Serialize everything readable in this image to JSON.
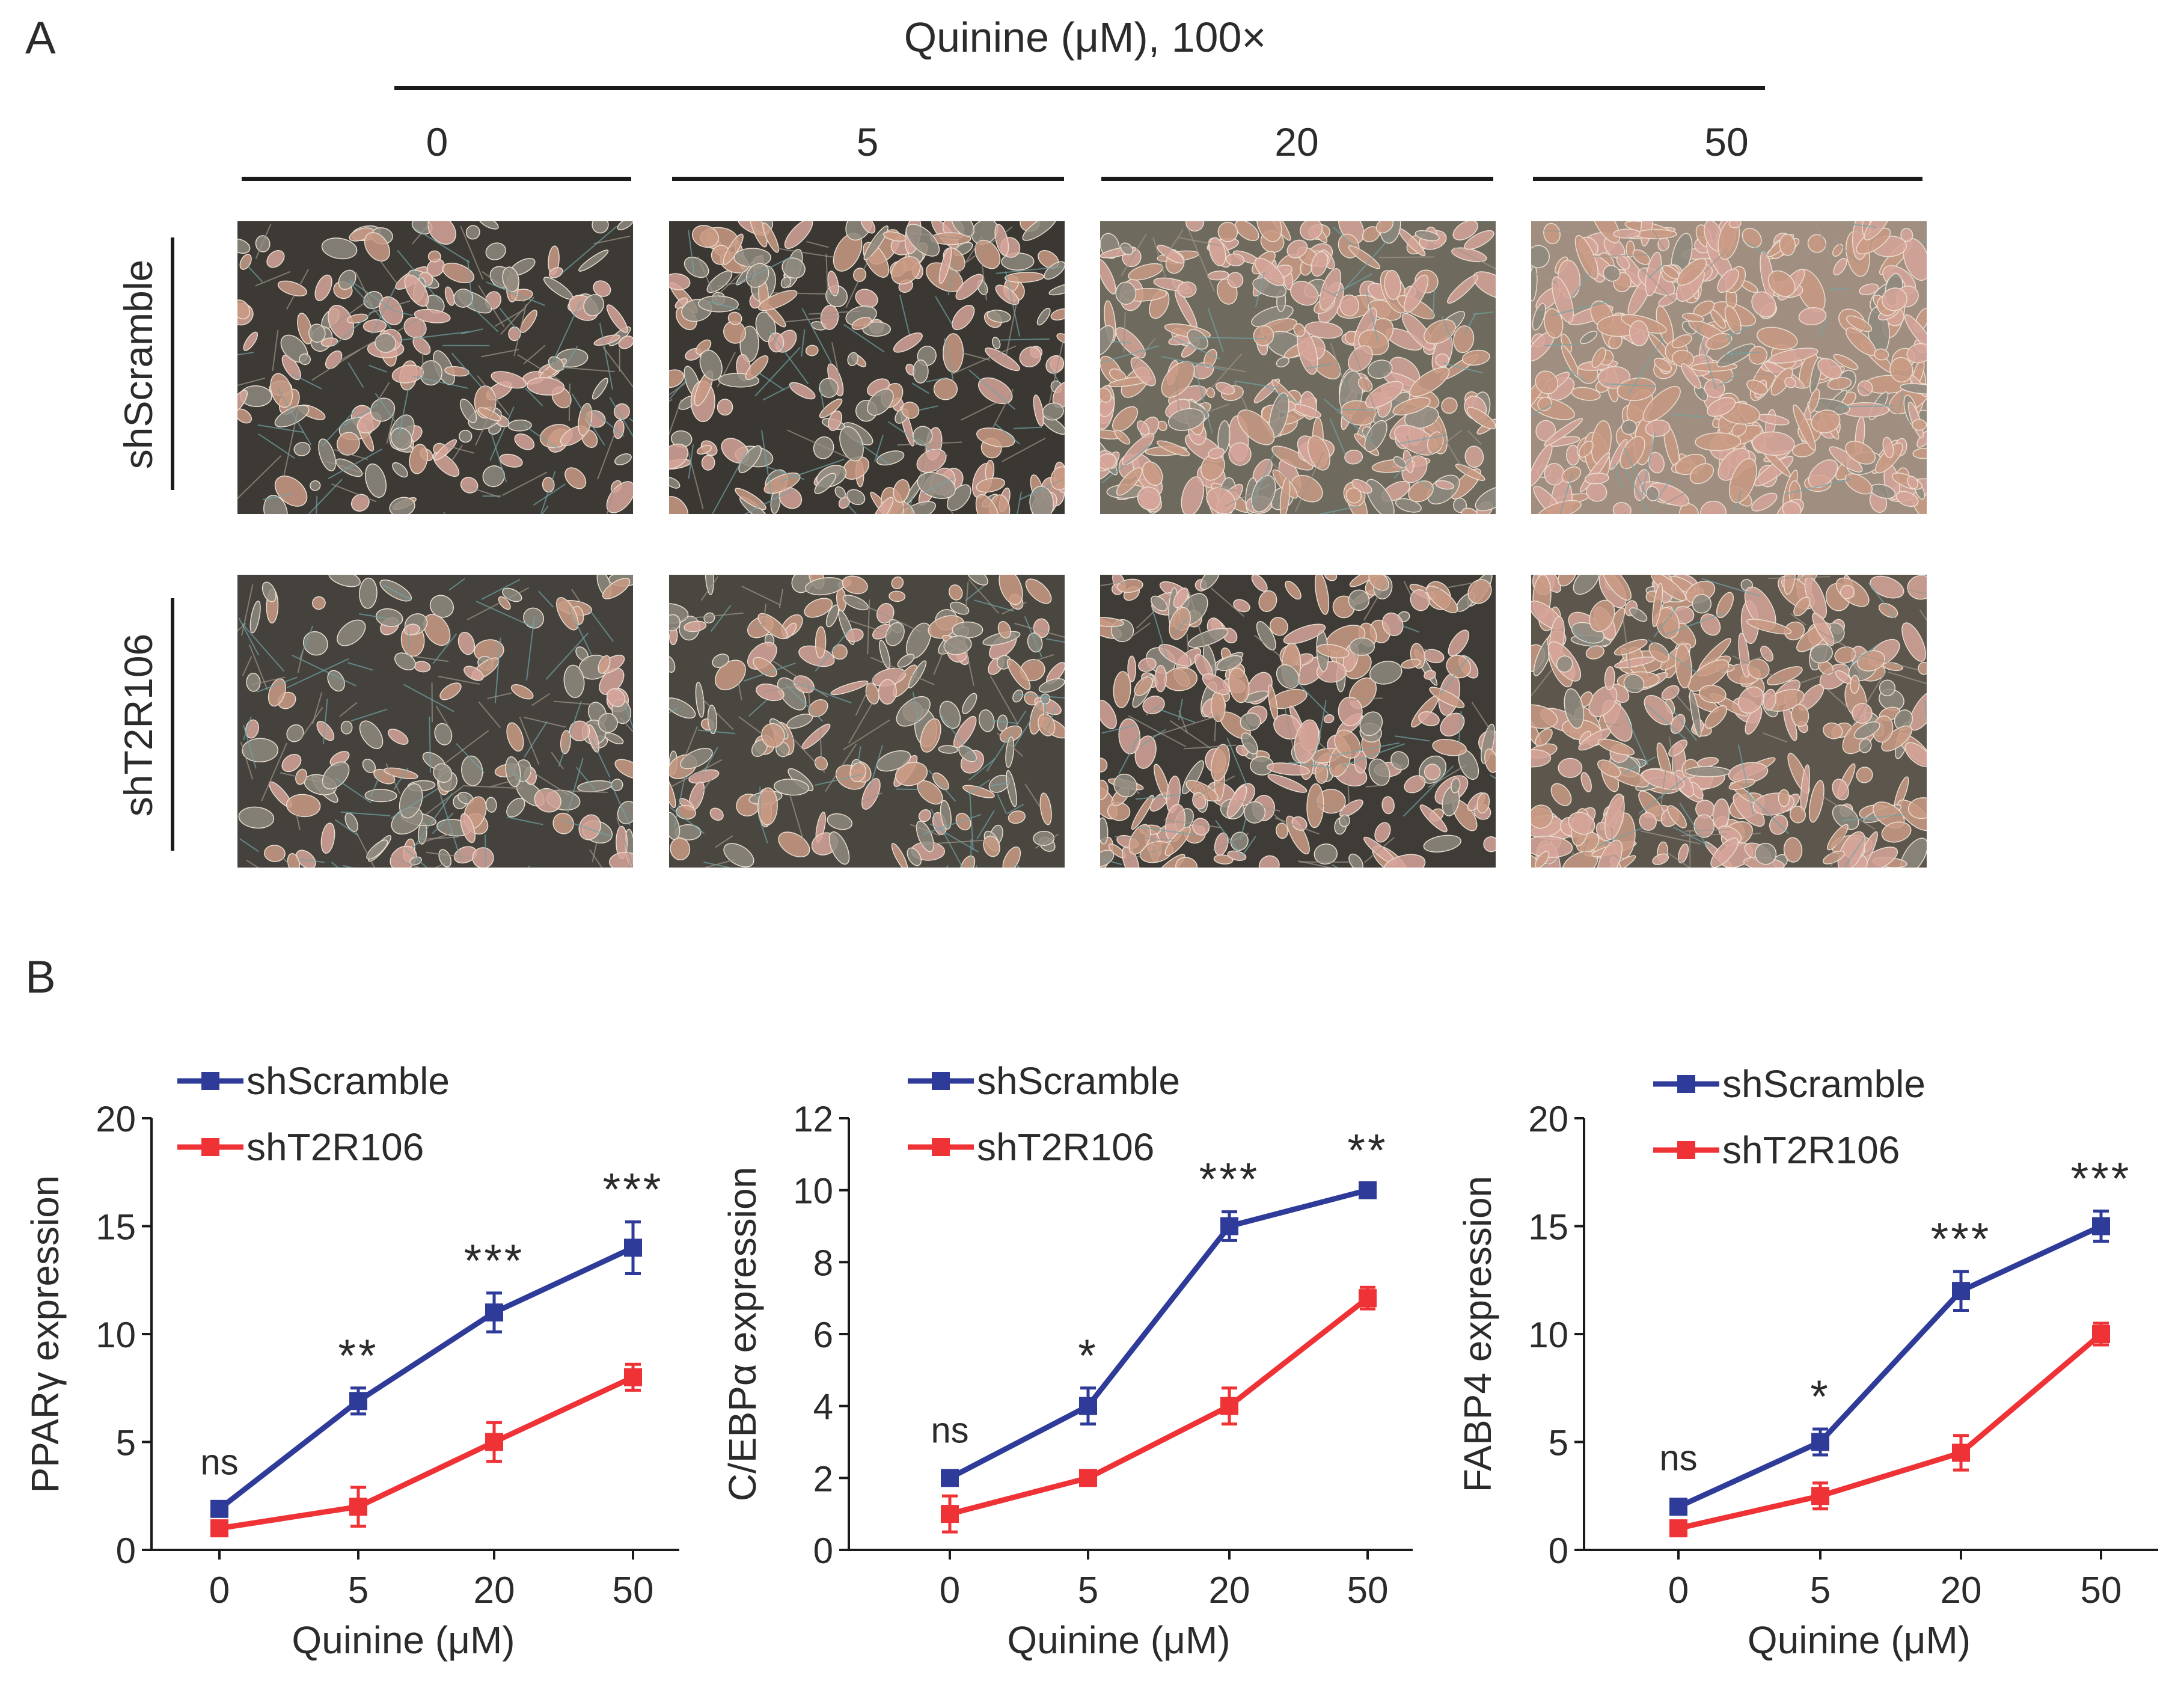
{
  "panel_a": {
    "letter": "A",
    "header": "Quinine (μM), 100×",
    "columns": [
      "0",
      "5",
      "20",
      "50"
    ],
    "rows": [
      "shScramble",
      "shT2R106"
    ]
  },
  "panel_b": {
    "letter": "B"
  },
  "colors": {
    "shScramble": "#2f3b99",
    "shT2R106": "#ee3236",
    "micro_bg_low": "#3e3a35",
    "micro_cell": "#d9a898"
  },
  "chart_data": [
    {
      "type": "line",
      "categories": [
        "0",
        "5",
        "20",
        "50"
      ],
      "xlabel": "Quinine (μM)",
      "ylabel": "PPARγ expression",
      "ylim": [
        0,
        20
      ],
      "yticks": [
        "0",
        "5",
        "10",
        "15",
        "20"
      ],
      "series": [
        {
          "name": "shScramble",
          "values": [
            1.9,
            6.9,
            11.0,
            14.0
          ],
          "err": [
            0.2,
            0.6,
            0.9,
            1.2
          ]
        },
        {
          "name": "shT2R106",
          "values": [
            1.0,
            2.0,
            5.0,
            8.0
          ],
          "err": [
            0.3,
            0.9,
            0.9,
            0.6
          ]
        }
      ],
      "annotations": [
        "ns",
        "**",
        "***",
        "***"
      ],
      "legend": "top-left"
    },
    {
      "type": "line",
      "categories": [
        "0",
        "5",
        "20",
        "50"
      ],
      "xlabel": "Quinine (μM)",
      "ylabel": "C/EBPα expression",
      "ylim": [
        0,
        12
      ],
      "yticks": [
        "0",
        "2",
        "4",
        "6",
        "8",
        "10",
        "12"
      ],
      "series": [
        {
          "name": "shScramble",
          "values": [
            2.0,
            4.0,
            9.0,
            10.0
          ],
          "err": [
            0.15,
            0.5,
            0.4,
            0.2
          ]
        },
        {
          "name": "shT2R106",
          "values": [
            1.0,
            2.0,
            4.0,
            7.0
          ],
          "err": [
            0.5,
            0.2,
            0.5,
            0.3
          ]
        }
      ],
      "annotations": [
        "ns",
        "*",
        "***",
        "**"
      ],
      "legend": "top-left"
    },
    {
      "type": "line",
      "categories": [
        "0",
        "5",
        "20",
        "50"
      ],
      "xlabel": "Quinine (μM)",
      "ylabel": "FABP4 expression",
      "ylim": [
        0,
        20
      ],
      "yticks": [
        "0",
        "5",
        "10",
        "15",
        "20"
      ],
      "series": [
        {
          "name": "shScramble",
          "values": [
            2.0,
            5.0,
            12.0,
            15.0
          ],
          "err": [
            0.3,
            0.6,
            0.9,
            0.7
          ]
        },
        {
          "name": "shT2R106",
          "values": [
            1.0,
            2.5,
            4.5,
            10.0
          ],
          "err": [
            0.3,
            0.6,
            0.8,
            0.5
          ]
        }
      ],
      "annotations": [
        "ns",
        "*",
        "***",
        "***"
      ],
      "legend": "top-left"
    }
  ]
}
